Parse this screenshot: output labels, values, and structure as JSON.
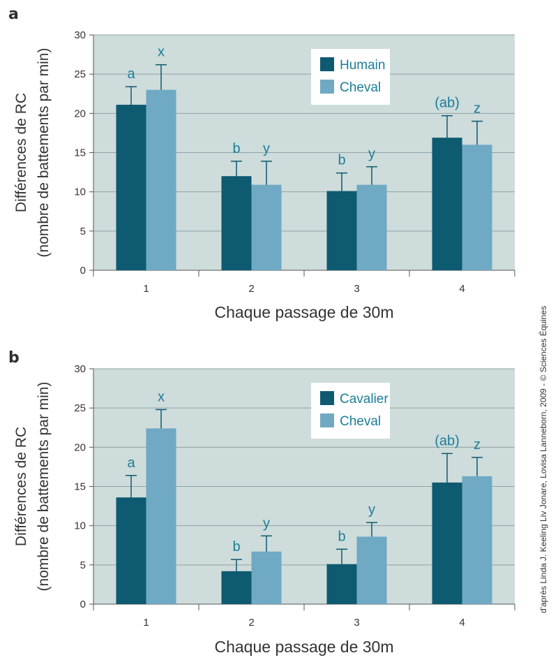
{
  "colors": {
    "panel_bg": "#cedcdb",
    "grid": "#8fa3a6",
    "dark_series": "#0e5a70",
    "light_series": "#6fa9c4",
    "accent_text": "#1c7d99",
    "axis": "#555555"
  },
  "credit": "d'après Linda J. Keeling Liv Jonare, Lovisa Lanneborn, 2009 - © Sciences Équines",
  "chart_data": [
    {
      "panel": "a",
      "type": "bar",
      "categories": [
        "1",
        "2",
        "3",
        "4"
      ],
      "series": [
        {
          "name": "Humain",
          "values": [
            21.1,
            12.0,
            10.1,
            16.9
          ],
          "errors": [
            2.3,
            1.9,
            2.3,
            2.8
          ],
          "labels": [
            "a",
            "b",
            "b",
            "(ab)"
          ]
        },
        {
          "name": "Cheval",
          "values": [
            23.0,
            10.9,
            10.9,
            16.0
          ],
          "errors": [
            3.2,
            3.0,
            2.3,
            3.0
          ],
          "labels": [
            "x",
            "y",
            "y",
            "z"
          ]
        }
      ],
      "ylim": [
        0,
        30
      ],
      "yticks": [
        0,
        5,
        10,
        15,
        20,
        25,
        30
      ],
      "xlabel": "Chaque passage de 30m",
      "ylabel_line1": "Différences de RC",
      "ylabel_line2": "(nombre de battements par min)",
      "legend_position": "top-right"
    },
    {
      "panel": "b",
      "type": "bar",
      "categories": [
        "1",
        "2",
        "3",
        "4"
      ],
      "series": [
        {
          "name": "Cavalier",
          "values": [
            13.6,
            4.2,
            5.1,
            15.5
          ],
          "errors": [
            2.8,
            1.5,
            1.9,
            3.7
          ],
          "labels": [
            "a",
            "b",
            "b",
            "(ab)"
          ]
        },
        {
          "name": "Cheval",
          "values": [
            22.4,
            6.7,
            8.6,
            16.3
          ],
          "errors": [
            2.4,
            2.0,
            1.8,
            2.4
          ],
          "labels": [
            "x",
            "y",
            "y",
            "z"
          ]
        }
      ],
      "ylim": [
        0,
        30
      ],
      "yticks": [
        0,
        5,
        10,
        15,
        20,
        25,
        30
      ],
      "xlabel": "Chaque passage de 30m",
      "ylabel_line1": "Différences de RC",
      "ylabel_line2": "(nombre de battements par min)",
      "legend_position": "top-right"
    }
  ]
}
